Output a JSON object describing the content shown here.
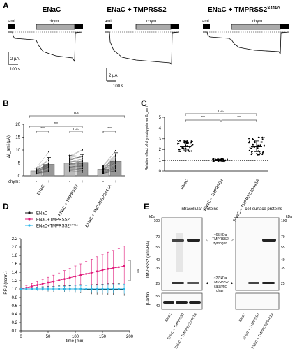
{
  "panels": {
    "A": {
      "label": "A",
      "traces": [
        {
          "title": "ENaC",
          "ami": "ami",
          "chym": "chym",
          "scale_y": "2 µA",
          "scale_x": "100 s"
        },
        {
          "title": "ENaC + TMPRSS2",
          "ami": "ami",
          "chym": "chym",
          "scale_y": "2 µA",
          "scale_x": "100 s"
        },
        {
          "title_main": "ENaC + TMPRSS2",
          "title_sup": "S441A",
          "ami": "ami",
          "chym": "chym"
        }
      ]
    },
    "B": {
      "label": "B",
      "ylabel": "ΔI_ami (µA)",
      "row_label": "chym:",
      "signs": [
        "-",
        "+",
        "-",
        "+",
        "-",
        "+"
      ],
      "groups": [
        "ENaC",
        "ENaC + TMPRSS2",
        "ENaC + TMPRSS2S441A"
      ],
      "sig": [
        "***",
        "n.s.",
        "***",
        "***",
        "n.s."
      ]
    },
    "C": {
      "label": "C",
      "ylabel": "Relative effect of chymotrypsin on ΔI_ami",
      "groups": [
        "ENaC",
        "ENaC + TMPRSS2",
        "ENaC + TMPRSS2S441A"
      ],
      "sig": [
        "n.s.",
        "***",
        "***"
      ]
    },
    "D": {
      "label": "D",
      "xlabel": "time (min)",
      "ylabel": "RFU (norm.)",
      "sig": "***"
    },
    "E": {
      "label": "E",
      "intracellular_title": "intracellular proteins",
      "surface_title": "cell surface proteins",
      "kda": "kDa",
      "ylabel_main": "TMPRSS2 (anti-HA)",
      "ylabel_actin": "β-actin",
      "zymogen_label": "~65 kDa TMPRSS2 zymogen",
      "catalytic_label": "~27 kDa TMPRSS2 catalytic chain",
      "left_ladder": [
        "100",
        "70",
        "55",
        "40",
        "35",
        "25",
        "55",
        "40"
      ],
      "right_ladder": [
        "100",
        "70",
        "55",
        "40",
        "35",
        "25"
      ],
      "lanes": [
        "ENaC",
        "ENaC + TMPRSS2",
        "ENaC + TMPRSS2S441A"
      ]
    }
  },
  "chart_data": [
    {
      "type": "scatter",
      "panel": "B",
      "ylabel": "ΔI_ami (µA)",
      "ylim": [
        0,
        20
      ],
      "yticks": [
        0,
        5,
        10,
        15,
        20
      ],
      "categories": [
        "ENaC",
        "ENaC + TMPRSS2",
        "ENaC + TMPRSS2S441A"
      ],
      "series": [
        {
          "name": "-",
          "values": [
            1.9,
            4.9,
            2.6
          ]
        },
        {
          "name": "+",
          "values": [
            4.5,
            5.2,
            5.6
          ]
        }
      ]
    },
    {
      "type": "scatter",
      "panel": "C",
      "ylim": [
        0,
        5
      ],
      "yticks": [
        0,
        1,
        2,
        3,
        4,
        5
      ],
      "categories": [
        "ENaC",
        "ENaC + TMPRSS2",
        "ENaC + TMPRSS2S441A"
      ],
      "values": [
        2.3,
        1.0,
        2.3
      ],
      "error": [
        0.35,
        0.07,
        0.5
      ],
      "reference_line": 1
    },
    {
      "type": "line",
      "panel": "D",
      "xlabel": "time (min)",
      "ylabel": "RFU (norm.)",
      "xlim": [
        0,
        200
      ],
      "ylim": [
        0,
        2.2
      ],
      "xticks": [
        0,
        50,
        100,
        150,
        200
      ],
      "yticks": [
        0,
        0.2,
        0.4,
        0.6,
        0.8,
        1.0,
        1.2,
        1.4,
        1.6,
        1.8,
        2.0,
        2.2
      ],
      "x": [
        0,
        10,
        20,
        30,
        40,
        50,
        60,
        70,
        80,
        90,
        100,
        110,
        120,
        130,
        140,
        150,
        160,
        170,
        180,
        190
      ],
      "series": [
        {
          "name": "ENaC",
          "color": "#111111",
          "values": [
            1.0,
            1.0,
            1.0,
            1.0,
            1.0,
            1.0,
            1.0,
            1.0,
            1.0,
            1.0,
            1.0,
            1.0,
            0.99,
            0.99,
            0.99,
            0.99,
            0.99,
            0.99,
            0.99,
            0.99
          ],
          "error": [
            0.02,
            0.03,
            0.03,
            0.04,
            0.05,
            0.06,
            0.06,
            0.07,
            0.08,
            0.08,
            0.09,
            0.1,
            0.1,
            0.11,
            0.12,
            0.12,
            0.13,
            0.14,
            0.14,
            0.15
          ]
        },
        {
          "name": "ENaC+TMPRSS2",
          "color": "#e0197a",
          "values": [
            1.0,
            1.03,
            1.06,
            1.09,
            1.12,
            1.15,
            1.18,
            1.21,
            1.24,
            1.27,
            1.3,
            1.33,
            1.36,
            1.39,
            1.42,
            1.45,
            1.48,
            1.5,
            1.52,
            1.55
          ],
          "error": [
            0.03,
            0.05,
            0.07,
            0.09,
            0.11,
            0.13,
            0.15,
            0.17,
            0.2,
            0.22,
            0.25,
            0.27,
            0.3,
            0.32,
            0.35,
            0.37,
            0.4,
            0.42,
            0.44,
            0.47
          ]
        },
        {
          "name": "ENaC+TMPRSS2S441A",
          "color": "#29b6e8",
          "values": [
            1.0,
            1.0,
            1.0,
            1.0,
            1.0,
            1.0,
            1.0,
            1.0,
            1.0,
            1.0,
            1.0,
            1.0,
            1.0,
            1.0,
            1.0,
            1.0,
            1.0,
            1.0,
            1.0,
            1.0
          ],
          "error": [
            0.02,
            0.03,
            0.03,
            0.04,
            0.04,
            0.05,
            0.05,
            0.06,
            0.06,
            0.07,
            0.07,
            0.08,
            0.08,
            0.09,
            0.09,
            0.1,
            0.1,
            0.1,
            0.11,
            0.11
          ]
        }
      ]
    }
  ]
}
